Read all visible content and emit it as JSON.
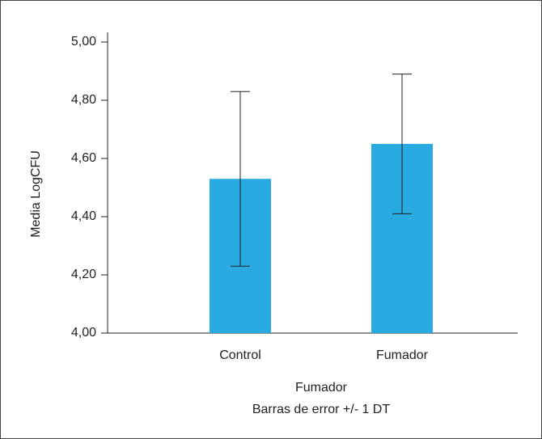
{
  "chart_data": {
    "type": "bar",
    "y_label": "Media LogCFU",
    "x_label": "Fumador",
    "note": "Barras de error +/- 1 DT",
    "categories": [
      "Control",
      "Fumador"
    ],
    "values": [
      4.53,
      4.65
    ],
    "errors": [
      0.3,
      0.24
    ],
    "color": "#29abe2",
    "ylim": [
      4.0,
      5.0
    ],
    "yticks": [
      {
        "value": 4.0,
        "label": "4,00"
      },
      {
        "value": 4.2,
        "label": "4,20"
      },
      {
        "value": 4.4,
        "label": "4,40"
      },
      {
        "value": 4.6,
        "label": "4,60"
      },
      {
        "value": 4.8,
        "label": "4,80"
      },
      {
        "value": 5.0,
        "label": "5,00"
      }
    ]
  }
}
